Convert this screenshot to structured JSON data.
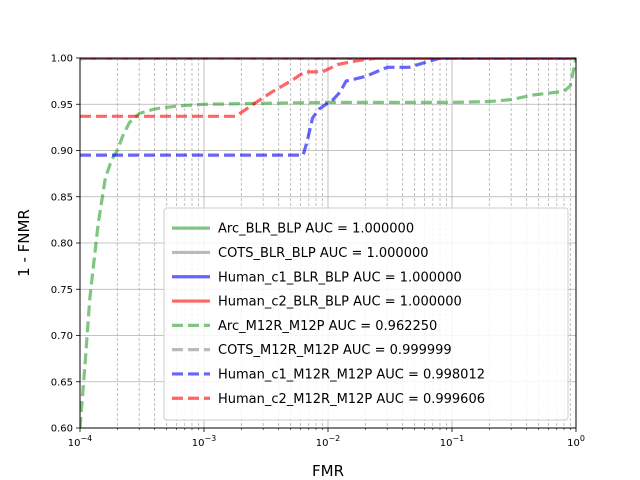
{
  "chart_data": {
    "type": "line",
    "title": "",
    "xlabel": "FMR",
    "ylabel": "1 - FNMR",
    "xscale": "log",
    "xlim": [
      0.0001,
      1
    ],
    "ylim": [
      0.6,
      1.0
    ],
    "xtick_labels": [
      "10^-4",
      "10^-3",
      "10^-2",
      "10^-1",
      "10^0"
    ],
    "ytick_labels": [
      "0.60",
      "0.65",
      "0.70",
      "0.75",
      "0.80",
      "0.85",
      "0.90",
      "0.95",
      "1.00"
    ],
    "grid": true,
    "legend_position": "lower-right",
    "series": [
      {
        "name": "Arc_BLR_BLP AUC = 1.000000",
        "color": "#2ca02c",
        "style": "solid",
        "points": [
          [
            0.0001,
            1.0
          ],
          [
            1,
            1.0
          ]
        ]
      },
      {
        "name": "COTS_BLR_BLP AUC = 1.000000",
        "color": "#8c8c8c",
        "style": "solid",
        "points": [
          [
            0.0001,
            1.0
          ],
          [
            1,
            1.0
          ]
        ]
      },
      {
        "name": "Human_c1_BLR_BLP AUC = 1.000000",
        "color": "#0000ff",
        "style": "solid",
        "points": [
          [
            0.0001,
            1.0
          ],
          [
            1,
            1.0
          ]
        ]
      },
      {
        "name": "Human_c2_BLR_BLP AUC = 1.000000",
        "color": "#ff0000",
        "style": "solid",
        "points": [
          [
            0.0001,
            1.0
          ],
          [
            1,
            1.0
          ]
        ]
      },
      {
        "name": "Arc_M12R_M12P AUC = 0.962250",
        "color": "#2ca02c",
        "style": "dashed",
        "points": [
          [
            0.0001,
            0.6
          ],
          [
            0.00011,
            0.67
          ],
          [
            0.00012,
            0.74
          ],
          [
            0.00014,
            0.82
          ],
          [
            0.00016,
            0.87
          ],
          [
            0.00018,
            0.89
          ],
          [
            0.0002,
            0.9
          ],
          [
            0.00022,
            0.915
          ],
          [
            0.00025,
            0.93
          ],
          [
            0.0003,
            0.94
          ],
          [
            0.0004,
            0.945
          ],
          [
            0.0006,
            0.948
          ],
          [
            0.001,
            0.95
          ],
          [
            0.003,
            0.951
          ],
          [
            0.01,
            0.952
          ],
          [
            0.1,
            0.952
          ],
          [
            0.2,
            0.953
          ],
          [
            0.3,
            0.955
          ],
          [
            0.45,
            0.96
          ],
          [
            0.6,
            0.962
          ],
          [
            0.8,
            0.964
          ],
          [
            0.9,
            0.97
          ],
          [
            1,
            1.0
          ]
        ]
      },
      {
        "name": "COTS_M12R_M12P AUC = 0.999999",
        "color": "#8c8c8c",
        "style": "dashed",
        "points": [
          [
            0.0001,
            0.999
          ],
          [
            0.00012,
            1.0
          ],
          [
            1,
            1.0
          ]
        ]
      },
      {
        "name": "Human_c1_M12R_M12P AUC = 0.998012",
        "color": "#0000ff",
        "style": "dashed",
        "points": [
          [
            0.0001,
            0.895
          ],
          [
            0.0063,
            0.895
          ],
          [
            0.0068,
            0.91
          ],
          [
            0.0075,
            0.935
          ],
          [
            0.0085,
            0.945
          ],
          [
            0.011,
            0.955
          ],
          [
            0.0125,
            0.963
          ],
          [
            0.014,
            0.975
          ],
          [
            0.02,
            0.98
          ],
          [
            0.03,
            0.99
          ],
          [
            0.045,
            0.99
          ],
          [
            0.06,
            0.995
          ],
          [
            0.08,
            1.0
          ],
          [
            1,
            1.0
          ]
        ]
      },
      {
        "name": "Human_c2_M12R_M12P AUC = 0.999606",
        "color": "#ff0000",
        "style": "dashed",
        "points": [
          [
            0.0001,
            0.937
          ],
          [
            0.0018,
            0.937
          ],
          [
            0.0025,
            0.95
          ],
          [
            0.0035,
            0.963
          ],
          [
            0.005,
            0.975
          ],
          [
            0.0065,
            0.985
          ],
          [
            0.009,
            0.985
          ],
          [
            0.012,
            0.993
          ],
          [
            0.017,
            0.997
          ],
          [
            0.025,
            1.0
          ],
          [
            1,
            1.0
          ]
        ]
      }
    ]
  }
}
